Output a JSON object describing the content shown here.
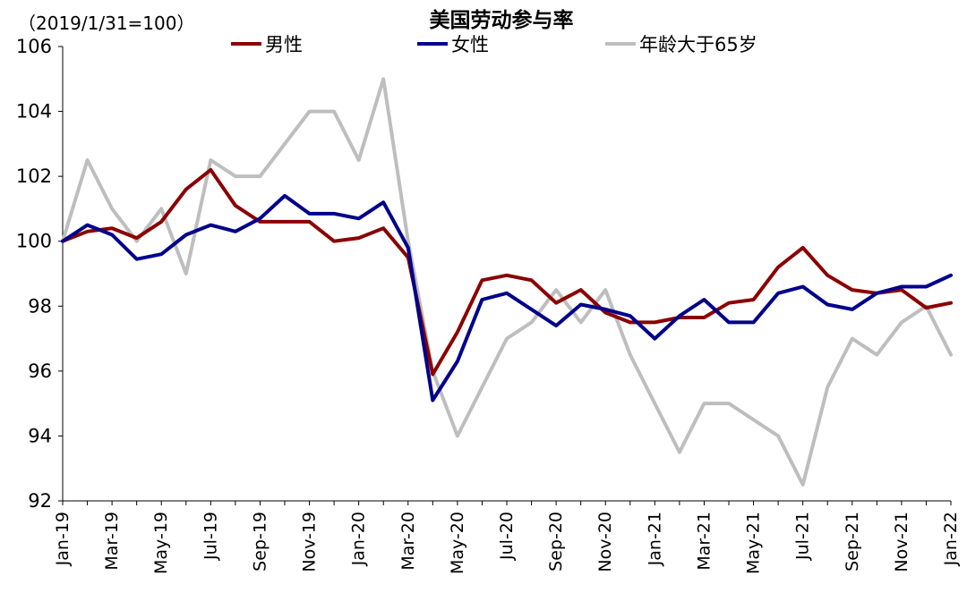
{
  "chart_data": {
    "type": "line",
    "title": "美国劳动参与率",
    "unit_label": "（2019/1/31=100）",
    "xlabel": "",
    "ylabel": "",
    "ylim": [
      92,
      106
    ],
    "yticks": [
      92,
      94,
      96,
      98,
      100,
      102,
      104,
      106
    ],
    "x": [
      "Jan-19",
      "Feb-19",
      "Mar-19",
      "Apr-19",
      "May-19",
      "Jun-19",
      "Jul-19",
      "Aug-19",
      "Sep-19",
      "Oct-19",
      "Nov-19",
      "Dec-19",
      "Jan-20",
      "Feb-20",
      "Mar-20",
      "Apr-20",
      "May-20",
      "Jun-20",
      "Jul-20",
      "Aug-20",
      "Sep-20",
      "Oct-20",
      "Nov-20",
      "Dec-20",
      "Jan-21",
      "Feb-21",
      "Mar-21",
      "Apr-21",
      "May-21",
      "Jun-21",
      "Jul-21",
      "Aug-21",
      "Sep-21",
      "Oct-21",
      "Nov-21",
      "Dec-21",
      "Jan-22"
    ],
    "xtick_labels": [
      "Jan-19",
      "Mar-19",
      "May-19",
      "Jul-19",
      "Sep-19",
      "Nov-19",
      "Jan-20",
      "Mar-20",
      "May-20",
      "Jul-20",
      "Sep-20",
      "Nov-20",
      "Jan-21",
      "Mar-21",
      "May-21",
      "Jul-21",
      "Sep-21",
      "Nov-21",
      "Jan-22"
    ],
    "grid": false,
    "legend_position": "top",
    "series": [
      {
        "name": "男性",
        "color": "#8B0000",
        "values": [
          100.0,
          100.3,
          100.4,
          100.1,
          100.6,
          101.6,
          102.2,
          101.1,
          100.6,
          100.6,
          100.6,
          100.0,
          100.1,
          100.4,
          99.5,
          95.9,
          97.2,
          98.8,
          98.95,
          98.8,
          98.1,
          98.5,
          97.8,
          97.5,
          97.5,
          97.65,
          97.65,
          98.1,
          98.2,
          99.2,
          99.8,
          98.95,
          98.5,
          98.4,
          98.5,
          97.95,
          98.1
        ]
      },
      {
        "name": "女性",
        "color": "#00008B",
        "values": [
          100.0,
          100.5,
          100.2,
          99.45,
          99.6,
          100.2,
          100.5,
          100.3,
          100.7,
          101.4,
          100.85,
          100.85,
          100.7,
          101.2,
          99.8,
          95.1,
          96.3,
          98.2,
          98.4,
          97.9,
          97.4,
          98.05,
          97.9,
          97.7,
          97.0,
          97.7,
          98.2,
          97.5,
          97.5,
          98.4,
          98.6,
          98.05,
          97.9,
          98.4,
          98.6,
          98.6,
          98.95
        ]
      },
      {
        "name": "年龄大于65岁",
        "color": "#BEBEBE",
        "values": [
          100.0,
          102.5,
          101.0,
          100.0,
          101.0,
          99.0,
          102.5,
          102.0,
          102.0,
          103.0,
          104.0,
          104.0,
          102.5,
          105.0,
          100.0,
          96.0,
          94.0,
          95.5,
          97.0,
          97.5,
          98.5,
          97.5,
          98.5,
          96.5,
          95.0,
          93.5,
          95.0,
          95.0,
          94.5,
          94.0,
          92.5,
          95.5,
          97.0,
          96.5,
          97.5,
          98.0,
          96.5
        ]
      }
    ]
  }
}
